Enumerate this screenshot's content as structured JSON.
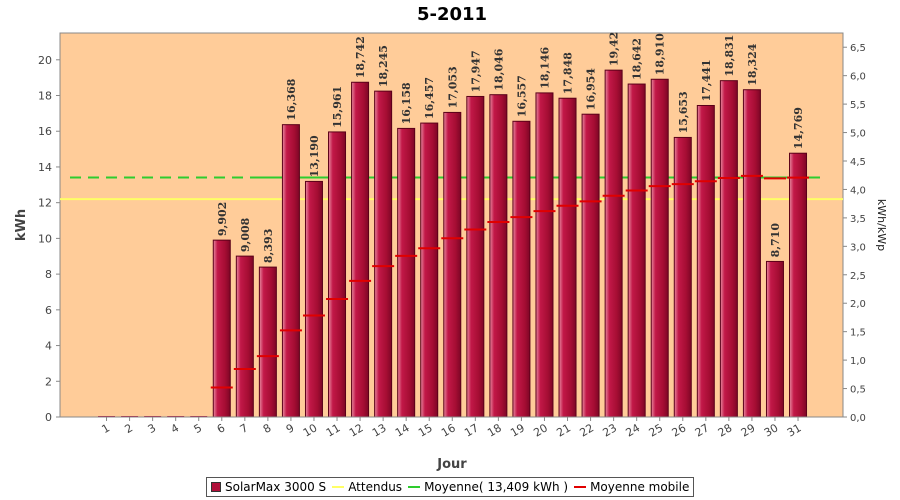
{
  "chart_data": {
    "type": "bar",
    "title": "5-2011",
    "xlabel": "Jour",
    "ylabel": "kWh",
    "y2label": "kWh/kWp",
    "ylim": [
      0,
      21.5
    ],
    "y2lim": [
      0,
      6.75
    ],
    "yticks": [
      "0",
      "2",
      "4",
      "6",
      "8",
      "10",
      "12",
      "14",
      "16",
      "18",
      "20"
    ],
    "y2ticks": [
      "0,0",
      "0,5",
      "1,0",
      "1,5",
      "2,0",
      "2,5",
      "3,0",
      "3,5",
      "4,0",
      "4,5",
      "5,0",
      "5,5",
      "6,0",
      "6,5"
    ],
    "categories": [
      "1",
      "2",
      "3",
      "4",
      "5",
      "6",
      "7",
      "8",
      "9",
      "10",
      "11",
      "12",
      "13",
      "14",
      "15",
      "16",
      "17",
      "18",
      "19",
      "20",
      "21",
      "22",
      "23",
      "24",
      "25",
      "26",
      "27",
      "28",
      "29",
      "30",
      "31"
    ],
    "series": [
      {
        "name": "SolarMax 3000 S",
        "type": "bar",
        "color": "#b0103a",
        "values": [
          0,
          0,
          0,
          0,
          0,
          9.902,
          9.008,
          8.393,
          16.368,
          13.19,
          15.961,
          18.742,
          18.245,
          16.158,
          16.457,
          17.053,
          17.947,
          18.046,
          16.557,
          18.146,
          17.848,
          16.954,
          19.42,
          18.642,
          18.91,
          15.653,
          17.441,
          18.831,
          18.324,
          8.71,
          14.769
        ],
        "labels": [
          "",
          "",
          "",
          "",
          "",
          "9,902",
          "9,008",
          "8,393",
          "16,368",
          "13,190",
          "15,961",
          "18,742",
          "18,245",
          "16,158",
          "16,457",
          "17,053",
          "17,947",
          "18,046",
          "16,557",
          "18,146",
          "17,848",
          "16,954",
          "19,42",
          "18,642",
          "18,910",
          "15,653",
          "17,441",
          "18,831",
          "18,324",
          "8,710",
          "14,769"
        ]
      },
      {
        "name": "Attendus",
        "type": "line",
        "color": "#ffff66",
        "value": 12.2
      },
      {
        "name": "Moyenne( 13,409 kWh )",
        "type": "line",
        "color": "#2ecc2e",
        "value": 13.409
      },
      {
        "name": "Moyenne mobile",
        "type": "marker",
        "color": "#e00000",
        "values": [
          0,
          0,
          0,
          0,
          0,
          1.65,
          2.69,
          3.41,
          4.85,
          5.68,
          6.61,
          7.62,
          8.45,
          9.02,
          9.45,
          10.01,
          10.5,
          10.92,
          11.19,
          11.53,
          11.83,
          12.07,
          12.39,
          12.68,
          12.93,
          13.04,
          13.2,
          13.38,
          13.5,
          13.36,
          13.4
        ]
      }
    ],
    "legend": "bottom",
    "grid": false
  }
}
